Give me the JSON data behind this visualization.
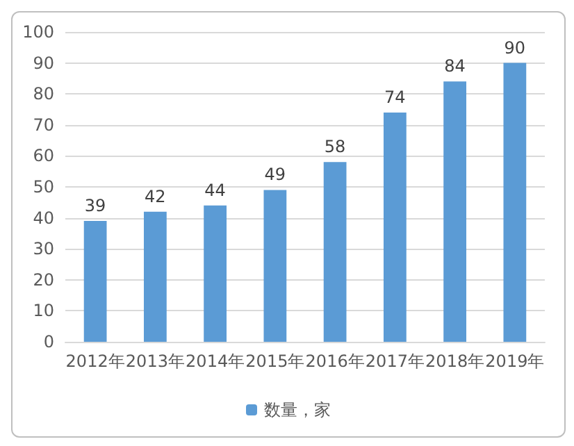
{
  "chart_data": {
    "type": "bar",
    "categories": [
      "2012年",
      "2013年",
      "2014年",
      "2015年",
      "2016年",
      "2017年",
      "2018年",
      "2019年"
    ],
    "series": [
      {
        "name": "数量，家",
        "color": "#5b9bd5",
        "values": [
          39,
          42,
          44,
          49,
          58,
          74,
          84,
          90
        ]
      }
    ],
    "ylim": [
      0,
      100
    ],
    "yticks": [
      0,
      10,
      20,
      30,
      40,
      50,
      60,
      70,
      80,
      90,
      100
    ],
    "grid": "y",
    "legend": "bottom",
    "data_labels": true
  }
}
